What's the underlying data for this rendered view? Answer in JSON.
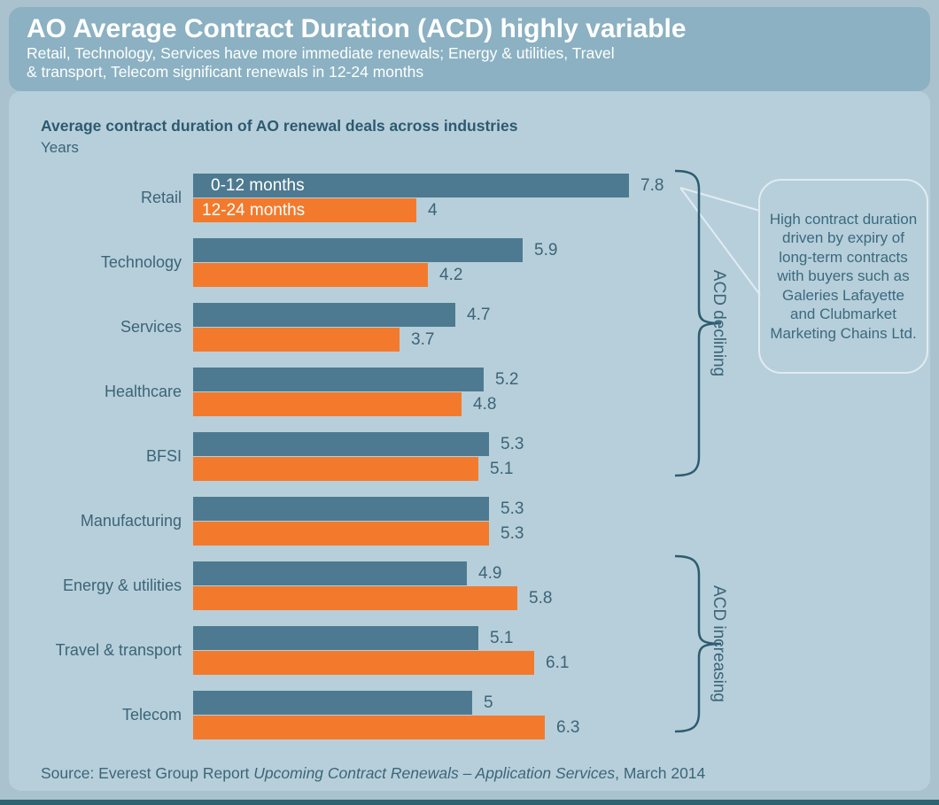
{
  "page": {
    "bg": "#a9c2ce",
    "accent_strip_color": "#2e6372"
  },
  "header": {
    "bg": "#8bb1c2",
    "title": "AO Average Contract Duration (ACD) highly variable",
    "subtitle_line1": "Retail, Technology, Services have more immediate renewals; Energy & utilities, Travel",
    "subtitle_line2": "& transport, Telecom significant renewals in 12-24 months"
  },
  "chart": {
    "title": "Average contract duration of AO renewal deals across industries",
    "unit_label": "Years"
  },
  "chart_data": {
    "type": "bar",
    "orientation": "horizontal",
    "title": "Average contract duration of AO renewal deals across industries",
    "unit": "Years",
    "xlim": [
      0,
      7.8
    ],
    "grid": false,
    "legend_position": "inside-first-bars",
    "categories": [
      "Retail",
      "Technology",
      "Services",
      "Healthcare",
      "BFSI",
      "Manufacturing",
      "Energy & utilities",
      "Travel & transport",
      "Telecom"
    ],
    "series": [
      {
        "name": "0-12 months",
        "color": "#4d7a90",
        "values": [
          7.8,
          5.9,
          4.7,
          5.2,
          5.3,
          5.3,
          4.9,
          5.1,
          5
        ],
        "display": [
          "7.8",
          "5.9",
          "4.7",
          "5.2",
          "5.3",
          "5.3",
          "4.9",
          "5.1",
          "5"
        ]
      },
      {
        "name": "12-24 months",
        "color": "#f37a2c",
        "values": [
          4,
          4.2,
          3.7,
          4.8,
          5.1,
          5.3,
          5.8,
          6.1,
          6.3
        ],
        "display": [
          "4",
          "4.2",
          "3.7",
          "4.8",
          "5.1",
          "5.3",
          "5.8",
          "6.1",
          "6.3"
        ]
      }
    ]
  },
  "annotations": {
    "declining_label": "ACD declining",
    "increasing_label": "ACD increasing",
    "callout_text": "High contract duration driven by expiry of long-term contracts with buyers such as Galeries Lafayette and Clubmarket Marketing Chains Ltd."
  },
  "source": {
    "prefix": "Source: Everest Group Report ",
    "italic_title": "Upcoming Contract Renewals – Application Services",
    "suffix": ", March 2014"
  }
}
